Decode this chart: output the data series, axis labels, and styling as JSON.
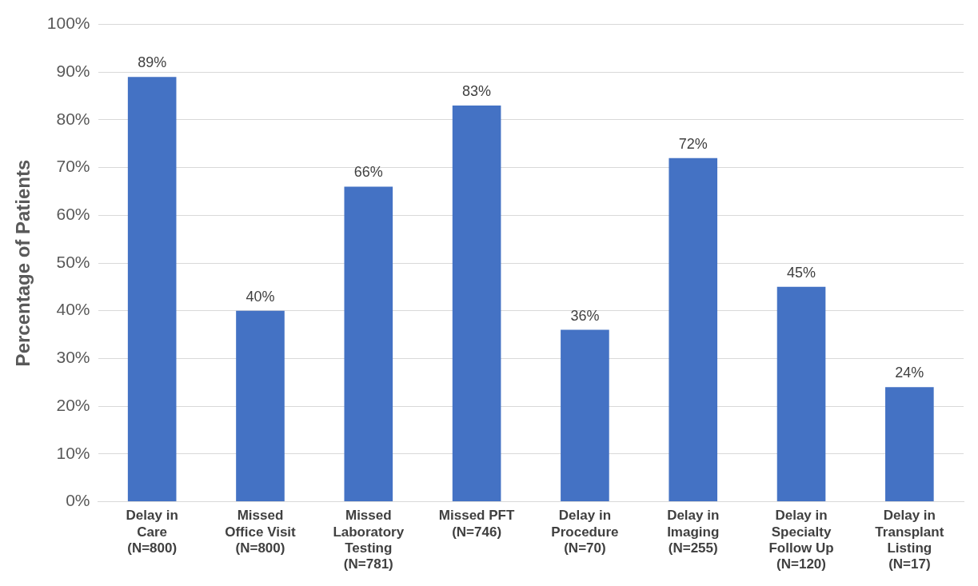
{
  "chart_data": {
    "type": "bar",
    "ylabel": "Percentage of Patients",
    "categories": [
      "Delay in Care (N=800)",
      "Missed Office Visit (N=800)",
      "Missed Laboratory Testing (N=781)",
      "Missed PFT (N=746)",
      "Delay in Procedure (N=70)",
      "Delay in Imaging (N=255)",
      "Delay in Specialty Follow Up (N=120)",
      "Delay in Transplant Listing (N=17)"
    ],
    "values": [
      89,
      40,
      66,
      83,
      36,
      72,
      45,
      24
    ],
    "value_labels": [
      "89%",
      "40%",
      "66%",
      "83%",
      "36%",
      "72%",
      "45%",
      "24%"
    ],
    "color": "#4472c4",
    "ylim": [
      0,
      100
    ],
    "yticks": [
      {
        "value": 0,
        "label": "0%"
      },
      {
        "value": 10,
        "label": "10%"
      },
      {
        "value": 20,
        "label": "20%"
      },
      {
        "value": 30,
        "label": "30%"
      },
      {
        "value": 40,
        "label": "40%"
      },
      {
        "value": 50,
        "label": "50%"
      },
      {
        "value": 60,
        "label": "60%"
      },
      {
        "value": 70,
        "label": "70%"
      },
      {
        "value": 80,
        "label": "80%"
      },
      {
        "value": 90,
        "label": "90%"
      },
      {
        "value": 100,
        "label": "100%"
      }
    ],
    "grid": "y"
  }
}
